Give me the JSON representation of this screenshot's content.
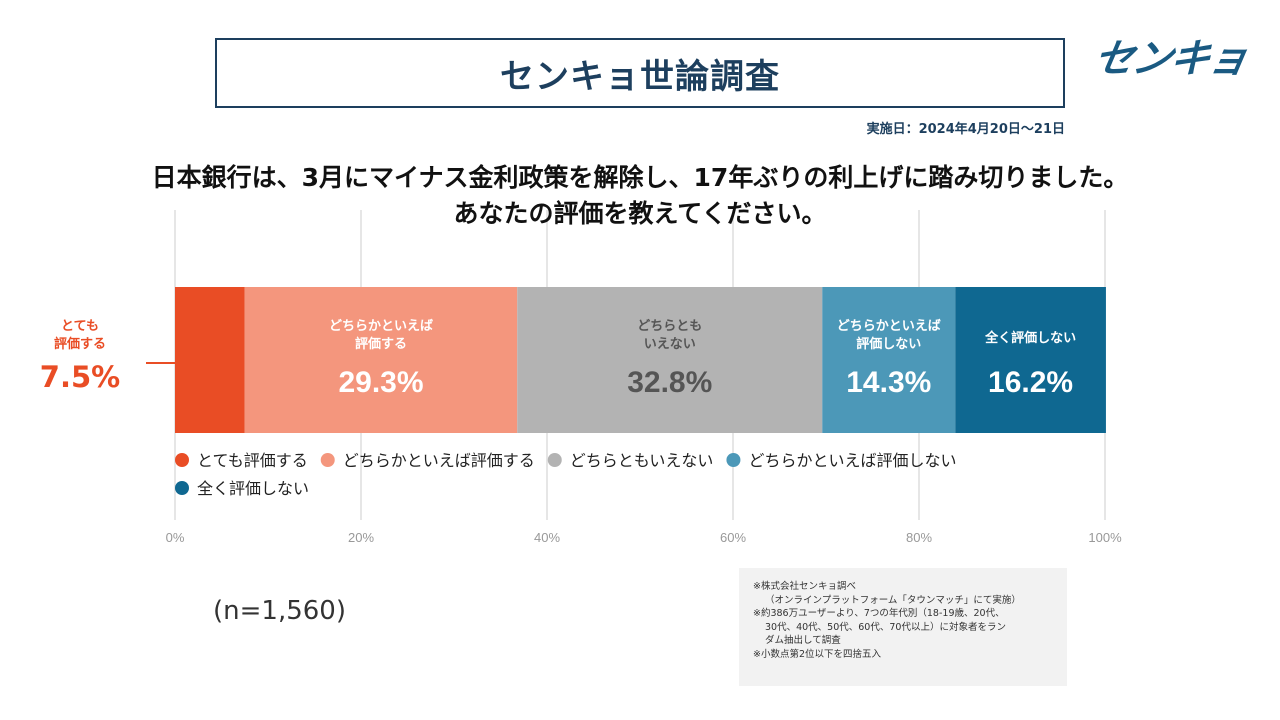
{
  "header": {
    "title": "センキョ世論調査",
    "logo": "センキョ",
    "date": "実施日：2024年4月20日～21日"
  },
  "question": {
    "line1": "日本銀行は、3月にマイナス金利政策を解除し、17年ぶりの利上げに踏み切りました。",
    "line2": "あなたの評価を教えてください。"
  },
  "callout": {
    "line1": "とても",
    "line2": "評価する",
    "pct": "7.5%"
  },
  "sample": "(n=1,560)",
  "notes": [
    "※株式会社センキョ調べ",
    "（オンラインプラットフォーム「タウンマッチ」にて実施）",
    "※約386万ユーザーより、7つの年代別（18-19歳、20代、",
    "30代、40代、50代、60代、70代以上）に対象者をラン",
    "ダム抽出して調査",
    "※小数点第2位以下を四捨五入"
  ],
  "chart_data": {
    "type": "bar",
    "orientation": "horizontal-stacked-100",
    "xlim": [
      0,
      100
    ],
    "ticks": [
      "0%",
      "20%",
      "40%",
      "60%",
      "80%",
      "100%"
    ],
    "tick_values": [
      0,
      20,
      40,
      60,
      80,
      100
    ],
    "grid": true,
    "series": [
      {
        "name": "とても評価する",
        "value": 7.5,
        "color": "#e94d25",
        "label_lines": [],
        "pct": "",
        "text_color": "#ffffff"
      },
      {
        "name": "どちらかといえば評価する",
        "value": 29.3,
        "color": "#f4967d",
        "label_lines": [
          "どちらかといえば",
          "評価する"
        ],
        "pct": "29.3%",
        "text_color": "#ffffff"
      },
      {
        "name": "どちらともいえない",
        "value": 32.8,
        "color": "#b3b3b3",
        "label_lines": [
          "どちらとも",
          "いえない"
        ],
        "pct": "32.8%",
        "text_color": "#555555"
      },
      {
        "name": "どちらかといえば評価しない",
        "value": 14.3,
        "color": "#4c98b8",
        "label_lines": [
          "どちらかといえば",
          "評価しない"
        ],
        "pct": "14.3%",
        "text_color": "#ffffff"
      },
      {
        "name": "全く評価しない",
        "value": 16.2,
        "color": "#0f6891",
        "label_lines": [
          "全く評価しない"
        ],
        "pct": "16.2%",
        "text_color": "#ffffff"
      }
    ],
    "legend": [
      "とても評価する",
      "どちらかといえば評価する",
      "どちらともいえない",
      "どちらかといえば評価しない",
      "全く評価しない"
    ],
    "legend_position": "below-bar"
  }
}
